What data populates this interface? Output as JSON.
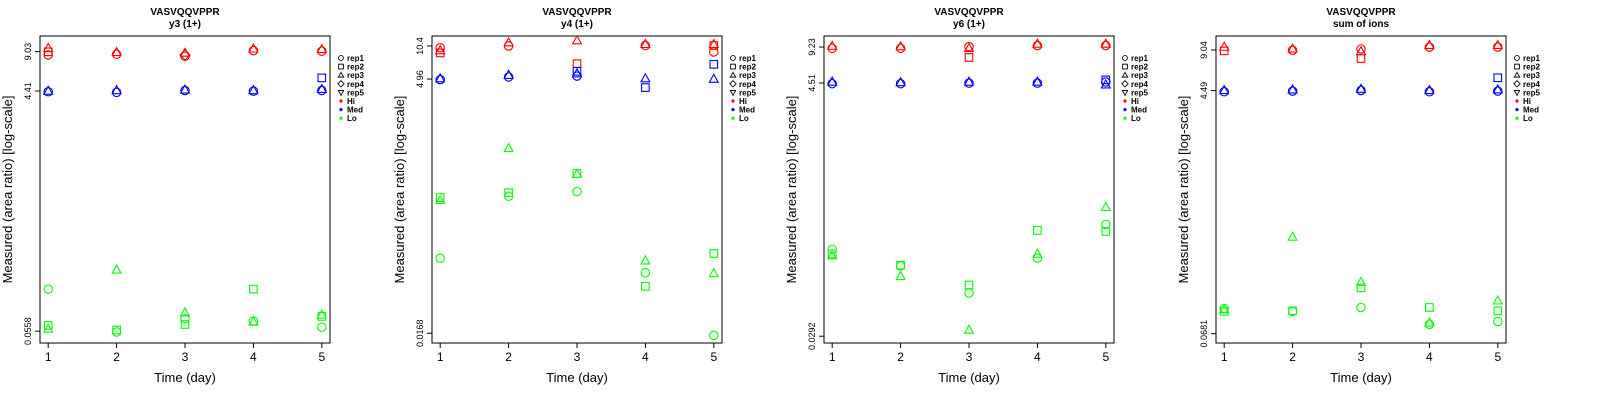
{
  "colors": {
    "Hi": "#ff0000",
    "Med": "#0000ff",
    "Lo": "#00ff00"
  },
  "legend": {
    "entries": [
      {
        "label": "rep1",
        "marker": "circle"
      },
      {
        "label": "rep2",
        "marker": "square"
      },
      {
        "label": "rep3",
        "marker": "triangle-up"
      },
      {
        "label": "rep4",
        "marker": "diamond"
      },
      {
        "label": "rep5",
        "marker": "triangle-down"
      },
      {
        "label": "Hi",
        "marker": "dot",
        "group": "Hi"
      },
      {
        "label": "Med",
        "marker": "dot",
        "group": "Med"
      },
      {
        "label": "Lo",
        "marker": "dot",
        "group": "Lo"
      }
    ]
  },
  "chart_data": [
    {
      "type": "scatter",
      "title": "VASVQQVPPR",
      "subtitle": "y3 (1+)",
      "xlabel": "Time (day)",
      "ylabel": "Measured (area ratio) [log-scale]",
      "log_y": true,
      "x_ticks": [
        1,
        2,
        3,
        4,
        5
      ],
      "y_ticks": [
        "0.0558",
        "4.41",
        "9.03"
      ],
      "ylim": [
        0.045,
        12
      ],
      "grid": false,
      "legend_position": "right",
      "points": [
        {
          "x": 1,
          "y": 9.6,
          "rep": "rep3",
          "group": "Hi"
        },
        {
          "x": 1,
          "y": 9.0,
          "rep": "rep2",
          "group": "Hi"
        },
        {
          "x": 1,
          "y": 8.5,
          "rep": "rep1",
          "group": "Hi"
        },
        {
          "x": 2,
          "y": 8.9,
          "rep": "rep3",
          "group": "Hi"
        },
        {
          "x": 2,
          "y": 8.6,
          "rep": "rep1",
          "group": "Hi"
        },
        {
          "x": 3,
          "y": 8.8,
          "rep": "rep3",
          "group": "Hi"
        },
        {
          "x": 3,
          "y": 8.3,
          "rep": "rep1",
          "group": "Hi"
        },
        {
          "x": 3,
          "y": 8.5,
          "rep": "rep4",
          "group": "Hi"
        },
        {
          "x": 4,
          "y": 9.5,
          "rep": "rep3",
          "group": "Hi"
        },
        {
          "x": 4,
          "y": 9.2,
          "rep": "rep1",
          "group": "Hi"
        },
        {
          "x": 5,
          "y": 9.4,
          "rep": "rep3",
          "group": "Hi"
        },
        {
          "x": 5,
          "y": 9.1,
          "rep": "rep1",
          "group": "Hi"
        },
        {
          "x": 1,
          "y": 4.4,
          "rep": "rep3",
          "group": "Med"
        },
        {
          "x": 1,
          "y": 4.35,
          "rep": "rep1",
          "group": "Med"
        },
        {
          "x": 2,
          "y": 4.45,
          "rep": "rep3",
          "group": "Med"
        },
        {
          "x": 2,
          "y": 4.3,
          "rep": "rep1",
          "group": "Med"
        },
        {
          "x": 3,
          "y": 4.5,
          "rep": "rep3",
          "group": "Med"
        },
        {
          "x": 3,
          "y": 4.45,
          "rep": "rep1",
          "group": "Med"
        },
        {
          "x": 4,
          "y": 4.45,
          "rep": "rep3",
          "group": "Med"
        },
        {
          "x": 4,
          "y": 4.4,
          "rep": "rep1",
          "group": "Med"
        },
        {
          "x": 5,
          "y": 5.6,
          "rep": "rep2",
          "group": "Med"
        },
        {
          "x": 5,
          "y": 4.55,
          "rep": "rep3",
          "group": "Med"
        },
        {
          "x": 5,
          "y": 4.45,
          "rep": "rep1",
          "group": "Med"
        },
        {
          "x": 1,
          "y": 0.12,
          "rep": "rep1",
          "group": "Lo"
        },
        {
          "x": 1,
          "y": 0.062,
          "rep": "rep2",
          "group": "Lo"
        },
        {
          "x": 1,
          "y": 0.058,
          "rep": "rep3",
          "group": "Lo"
        },
        {
          "x": 2,
          "y": 0.17,
          "rep": "rep3",
          "group": "Lo"
        },
        {
          "x": 2,
          "y": 0.057,
          "rep": "rep2",
          "group": "Lo"
        },
        {
          "x": 2,
          "y": 0.055,
          "rep": "rep1",
          "group": "Lo"
        },
        {
          "x": 3,
          "y": 0.078,
          "rep": "rep3",
          "group": "Lo"
        },
        {
          "x": 3,
          "y": 0.07,
          "rep": "rep1",
          "group": "Lo"
        },
        {
          "x": 3,
          "y": 0.063,
          "rep": "rep2",
          "group": "Lo"
        },
        {
          "x": 4,
          "y": 0.12,
          "rep": "rep2",
          "group": "Lo"
        },
        {
          "x": 4,
          "y": 0.067,
          "rep": "rep1",
          "group": "Lo"
        },
        {
          "x": 4,
          "y": 0.066,
          "rep": "rep3",
          "group": "Lo"
        },
        {
          "x": 5,
          "y": 0.075,
          "rep": "rep3",
          "group": "Lo"
        },
        {
          "x": 5,
          "y": 0.073,
          "rep": "rep2",
          "group": "Lo"
        },
        {
          "x": 5,
          "y": 0.06,
          "rep": "rep1",
          "group": "Lo"
        }
      ]
    },
    {
      "type": "scatter",
      "title": "VASVQQVPPR",
      "subtitle": "y4 (1+)",
      "xlabel": "Time (day)",
      "ylabel": "Measured (area ratio) [log-scale]",
      "log_y": true,
      "x_ticks": [
        1,
        2,
        3,
        4,
        5
      ],
      "y_ticks": [
        "0.0168",
        "4.96",
        "10.4"
      ],
      "ylim": [
        0.0135,
        13
      ],
      "grid": false,
      "legend_position": "right",
      "points": [
        {
          "x": 1,
          "y": 10.0,
          "rep": "rep1",
          "group": "Hi"
        },
        {
          "x": 1,
          "y": 9.4,
          "rep": "rep3",
          "group": "Hi"
        },
        {
          "x": 1,
          "y": 8.9,
          "rep": "rep2",
          "group": "Hi"
        },
        {
          "x": 2,
          "y": 11.2,
          "rep": "rep3",
          "group": "Hi"
        },
        {
          "x": 2,
          "y": 10.4,
          "rep": "rep1",
          "group": "Hi"
        },
        {
          "x": 3,
          "y": 11.7,
          "rep": "rep3",
          "group": "Hi"
        },
        {
          "x": 3,
          "y": 7.0,
          "rep": "rep2",
          "group": "Hi"
        },
        {
          "x": 4,
          "y": 10.8,
          "rep": "rep3",
          "group": "Hi"
        },
        {
          "x": 4,
          "y": 10.5,
          "rep": "rep1",
          "group": "Hi"
        },
        {
          "x": 5,
          "y": 10.8,
          "rep": "rep3",
          "group": "Hi"
        },
        {
          "x": 5,
          "y": 10.5,
          "rep": "rep2",
          "group": "Hi"
        },
        {
          "x": 5,
          "y": 9.1,
          "rep": "rep1",
          "group": "Hi"
        },
        {
          "x": 1,
          "y": 5.0,
          "rep": "rep3",
          "group": "Med"
        },
        {
          "x": 1,
          "y": 4.9,
          "rep": "rep1",
          "group": "Med"
        },
        {
          "x": 2,
          "y": 5.4,
          "rep": "rep3",
          "group": "Med"
        },
        {
          "x": 2,
          "y": 5.2,
          "rep": "rep1",
          "group": "Med"
        },
        {
          "x": 3,
          "y": 5.9,
          "rep": "rep2",
          "group": "Med"
        },
        {
          "x": 3,
          "y": 5.6,
          "rep": "rep3",
          "group": "Med"
        },
        {
          "x": 3,
          "y": 5.3,
          "rep": "rep1",
          "group": "Med"
        },
        {
          "x": 4,
          "y": 5.0,
          "rep": "rep3",
          "group": "Med"
        },
        {
          "x": 4,
          "y": 4.1,
          "rep": "rep2",
          "group": "Med"
        },
        {
          "x": 5,
          "y": 6.9,
          "rep": "rep2",
          "group": "Med"
        },
        {
          "x": 5,
          "y": 4.95,
          "rep": "rep3",
          "group": "Med"
        },
        {
          "x": 1,
          "y": 0.35,
          "rep": "rep2",
          "group": "Lo"
        },
        {
          "x": 1,
          "y": 0.33,
          "rep": "rep3",
          "group": "Lo"
        },
        {
          "x": 1,
          "y": 0.09,
          "rep": "rep1",
          "group": "Lo"
        },
        {
          "x": 2,
          "y": 1.05,
          "rep": "rep3",
          "group": "Lo"
        },
        {
          "x": 2,
          "y": 0.39,
          "rep": "rep2",
          "group": "Lo"
        },
        {
          "x": 2,
          "y": 0.36,
          "rep": "rep1",
          "group": "Lo"
        },
        {
          "x": 3,
          "y": 0.6,
          "rep": "rep2",
          "group": "Lo"
        },
        {
          "x": 3,
          "y": 0.59,
          "rep": "rep3",
          "group": "Lo"
        },
        {
          "x": 3,
          "y": 0.4,
          "rep": "rep1",
          "group": "Lo"
        },
        {
          "x": 4,
          "y": 0.085,
          "rep": "rep3",
          "group": "Lo"
        },
        {
          "x": 4,
          "y": 0.065,
          "rep": "rep1",
          "group": "Lo"
        },
        {
          "x": 4,
          "y": 0.048,
          "rep": "rep2",
          "group": "Lo"
        },
        {
          "x": 5,
          "y": 0.1,
          "rep": "rep2",
          "group": "Lo"
        },
        {
          "x": 5,
          "y": 0.064,
          "rep": "rep3",
          "group": "Lo"
        },
        {
          "x": 5,
          "y": 0.016,
          "rep": "rep1",
          "group": "Lo"
        }
      ]
    },
    {
      "type": "scatter",
      "title": "VASVQQVPPR",
      "subtitle": "y6 (1+)",
      "xlabel": "Time (day)",
      "ylabel": "Measured (area ratio) [log-scale]",
      "log_y": true,
      "x_ticks": [
        1,
        2,
        3,
        4,
        5
      ],
      "y_ticks": [
        "0.0292",
        "4.51",
        "9.23"
      ],
      "ylim": [
        0.0255,
        11.5
      ],
      "grid": false,
      "legend_position": "right",
      "points": [
        {
          "x": 1,
          "y": 9.4,
          "rep": "rep3",
          "group": "Hi"
        },
        {
          "x": 1,
          "y": 9.0,
          "rep": "rep1",
          "group": "Hi"
        },
        {
          "x": 2,
          "y": 9.3,
          "rep": "rep3",
          "group": "Hi"
        },
        {
          "x": 2,
          "y": 9.0,
          "rep": "rep1",
          "group": "Hi"
        },
        {
          "x": 3,
          "y": 9.3,
          "rep": "rep1",
          "group": "Hi"
        },
        {
          "x": 3,
          "y": 9.0,
          "rep": "rep3",
          "group": "Hi"
        },
        {
          "x": 3,
          "y": 7.5,
          "rep": "rep2",
          "group": "Hi"
        },
        {
          "x": 4,
          "y": 9.8,
          "rep": "rep3",
          "group": "Hi"
        },
        {
          "x": 4,
          "y": 9.5,
          "rep": "rep1",
          "group": "Hi"
        },
        {
          "x": 5,
          "y": 9.8,
          "rep": "rep3",
          "group": "Hi"
        },
        {
          "x": 5,
          "y": 9.5,
          "rep": "rep1",
          "group": "Hi"
        },
        {
          "x": 1,
          "y": 4.6,
          "rep": "rep3",
          "group": "Med"
        },
        {
          "x": 1,
          "y": 4.45,
          "rep": "rep1",
          "group": "Med"
        },
        {
          "x": 2,
          "y": 4.55,
          "rep": "rep3",
          "group": "Med"
        },
        {
          "x": 2,
          "y": 4.45,
          "rep": "rep1",
          "group": "Med"
        },
        {
          "x": 3,
          "y": 4.6,
          "rep": "rep3",
          "group": "Med"
        },
        {
          "x": 3,
          "y": 4.5,
          "rep": "rep1",
          "group": "Med"
        },
        {
          "x": 4,
          "y": 4.6,
          "rep": "rep3",
          "group": "Med"
        },
        {
          "x": 4,
          "y": 4.5,
          "rep": "rep1",
          "group": "Med"
        },
        {
          "x": 5,
          "y": 4.8,
          "rep": "rep2",
          "group": "Med"
        },
        {
          "x": 5,
          "y": 4.6,
          "rep": "rep1",
          "group": "Med"
        },
        {
          "x": 5,
          "y": 4.35,
          "rep": "rep3",
          "group": "Med"
        },
        {
          "x": 1,
          "y": 0.165,
          "rep": "rep1",
          "group": "Lo"
        },
        {
          "x": 1,
          "y": 0.15,
          "rep": "rep2",
          "group": "Lo"
        },
        {
          "x": 1,
          "y": 0.145,
          "rep": "rep3",
          "group": "Lo"
        },
        {
          "x": 2,
          "y": 0.12,
          "rep": "rep2",
          "group": "Lo"
        },
        {
          "x": 2,
          "y": 0.118,
          "rep": "rep1",
          "group": "Lo"
        },
        {
          "x": 2,
          "y": 0.096,
          "rep": "rep3",
          "group": "Lo"
        },
        {
          "x": 3,
          "y": 0.081,
          "rep": "rep2",
          "group": "Lo"
        },
        {
          "x": 3,
          "y": 0.069,
          "rep": "rep1",
          "group": "Lo"
        },
        {
          "x": 3,
          "y": 0.033,
          "rep": "rep3",
          "group": "Lo"
        },
        {
          "x": 4,
          "y": 0.24,
          "rep": "rep2",
          "group": "Lo"
        },
        {
          "x": 4,
          "y": 0.15,
          "rep": "rep3",
          "group": "Lo"
        },
        {
          "x": 4,
          "y": 0.138,
          "rep": "rep1",
          "group": "Lo"
        },
        {
          "x": 5,
          "y": 0.38,
          "rep": "rep3",
          "group": "Lo"
        },
        {
          "x": 5,
          "y": 0.27,
          "rep": "rep1",
          "group": "Lo"
        },
        {
          "x": 5,
          "y": 0.235,
          "rep": "rep2",
          "group": "Lo"
        }
      ]
    },
    {
      "type": "scatter",
      "title": "VASVQQVPPR",
      "subtitle": "sum of ions",
      "xlabel": "Time (day)",
      "ylabel": "Measured (area ratio) [log-scale]",
      "log_y": true,
      "x_ticks": [
        1,
        2,
        3,
        4,
        5
      ],
      "y_ticks": [
        "0.0681",
        "4.49",
        "9.04"
      ],
      "ylim": [
        0.058,
        11.5
      ],
      "grid": false,
      "legend_position": "right",
      "points": [
        {
          "x": 1,
          "y": 9.5,
          "rep": "rep3",
          "group": "Hi"
        },
        {
          "x": 1,
          "y": 8.9,
          "rep": "rep2",
          "group": "Hi"
        },
        {
          "x": 2,
          "y": 9.2,
          "rep": "rep3",
          "group": "Hi"
        },
        {
          "x": 2,
          "y": 9.0,
          "rep": "rep1",
          "group": "Hi"
        },
        {
          "x": 3,
          "y": 9.2,
          "rep": "rep1",
          "group": "Hi"
        },
        {
          "x": 3,
          "y": 8.8,
          "rep": "rep3",
          "group": "Hi"
        },
        {
          "x": 3,
          "y": 7.8,
          "rep": "rep2",
          "group": "Hi"
        },
        {
          "x": 4,
          "y": 9.8,
          "rep": "rep3",
          "group": "Hi"
        },
        {
          "x": 4,
          "y": 9.5,
          "rep": "rep1",
          "group": "Hi"
        },
        {
          "x": 5,
          "y": 9.8,
          "rep": "rep3",
          "group": "Hi"
        },
        {
          "x": 5,
          "y": 9.5,
          "rep": "rep1",
          "group": "Hi"
        },
        {
          "x": 1,
          "y": 4.5,
          "rep": "rep3",
          "group": "Med"
        },
        {
          "x": 1,
          "y": 4.4,
          "rep": "rep1",
          "group": "Med"
        },
        {
          "x": 2,
          "y": 4.55,
          "rep": "rep3",
          "group": "Med"
        },
        {
          "x": 2,
          "y": 4.45,
          "rep": "rep1",
          "group": "Med"
        },
        {
          "x": 3,
          "y": 4.6,
          "rep": "rep3",
          "group": "Med"
        },
        {
          "x": 3,
          "y": 4.5,
          "rep": "rep1",
          "group": "Med"
        },
        {
          "x": 4,
          "y": 4.5,
          "rep": "rep3",
          "group": "Med"
        },
        {
          "x": 4,
          "y": 4.4,
          "rep": "rep1",
          "group": "Med"
        },
        {
          "x": 5,
          "y": 5.6,
          "rep": "rep2",
          "group": "Med"
        },
        {
          "x": 5,
          "y": 4.55,
          "rep": "rep3",
          "group": "Med"
        },
        {
          "x": 5,
          "y": 4.45,
          "rep": "rep1",
          "group": "Med"
        },
        {
          "x": 1,
          "y": 0.105,
          "rep": "rep1",
          "group": "Lo"
        },
        {
          "x": 1,
          "y": 0.103,
          "rep": "rep3",
          "group": "Lo"
        },
        {
          "x": 1,
          "y": 0.1,
          "rep": "rep2",
          "group": "Lo"
        },
        {
          "x": 2,
          "y": 0.36,
          "rep": "rep3",
          "group": "Lo"
        },
        {
          "x": 2,
          "y": 0.101,
          "rep": "rep2",
          "group": "Lo"
        },
        {
          "x": 2,
          "y": 0.1,
          "rep": "rep1",
          "group": "Lo"
        },
        {
          "x": 3,
          "y": 0.165,
          "rep": "rep3",
          "group": "Lo"
        },
        {
          "x": 3,
          "y": 0.15,
          "rep": "rep2",
          "group": "Lo"
        },
        {
          "x": 3,
          "y": 0.107,
          "rep": "rep1",
          "group": "Lo"
        },
        {
          "x": 4,
          "y": 0.107,
          "rep": "rep2",
          "group": "Lo"
        },
        {
          "x": 4,
          "y": 0.082,
          "rep": "rep3",
          "group": "Lo"
        },
        {
          "x": 4,
          "y": 0.08,
          "rep": "rep1",
          "group": "Lo"
        },
        {
          "x": 5,
          "y": 0.12,
          "rep": "rep3",
          "group": "Lo"
        },
        {
          "x": 5,
          "y": 0.101,
          "rep": "rep2",
          "group": "Lo"
        },
        {
          "x": 5,
          "y": 0.084,
          "rep": "rep1",
          "group": "Lo"
        }
      ]
    }
  ]
}
